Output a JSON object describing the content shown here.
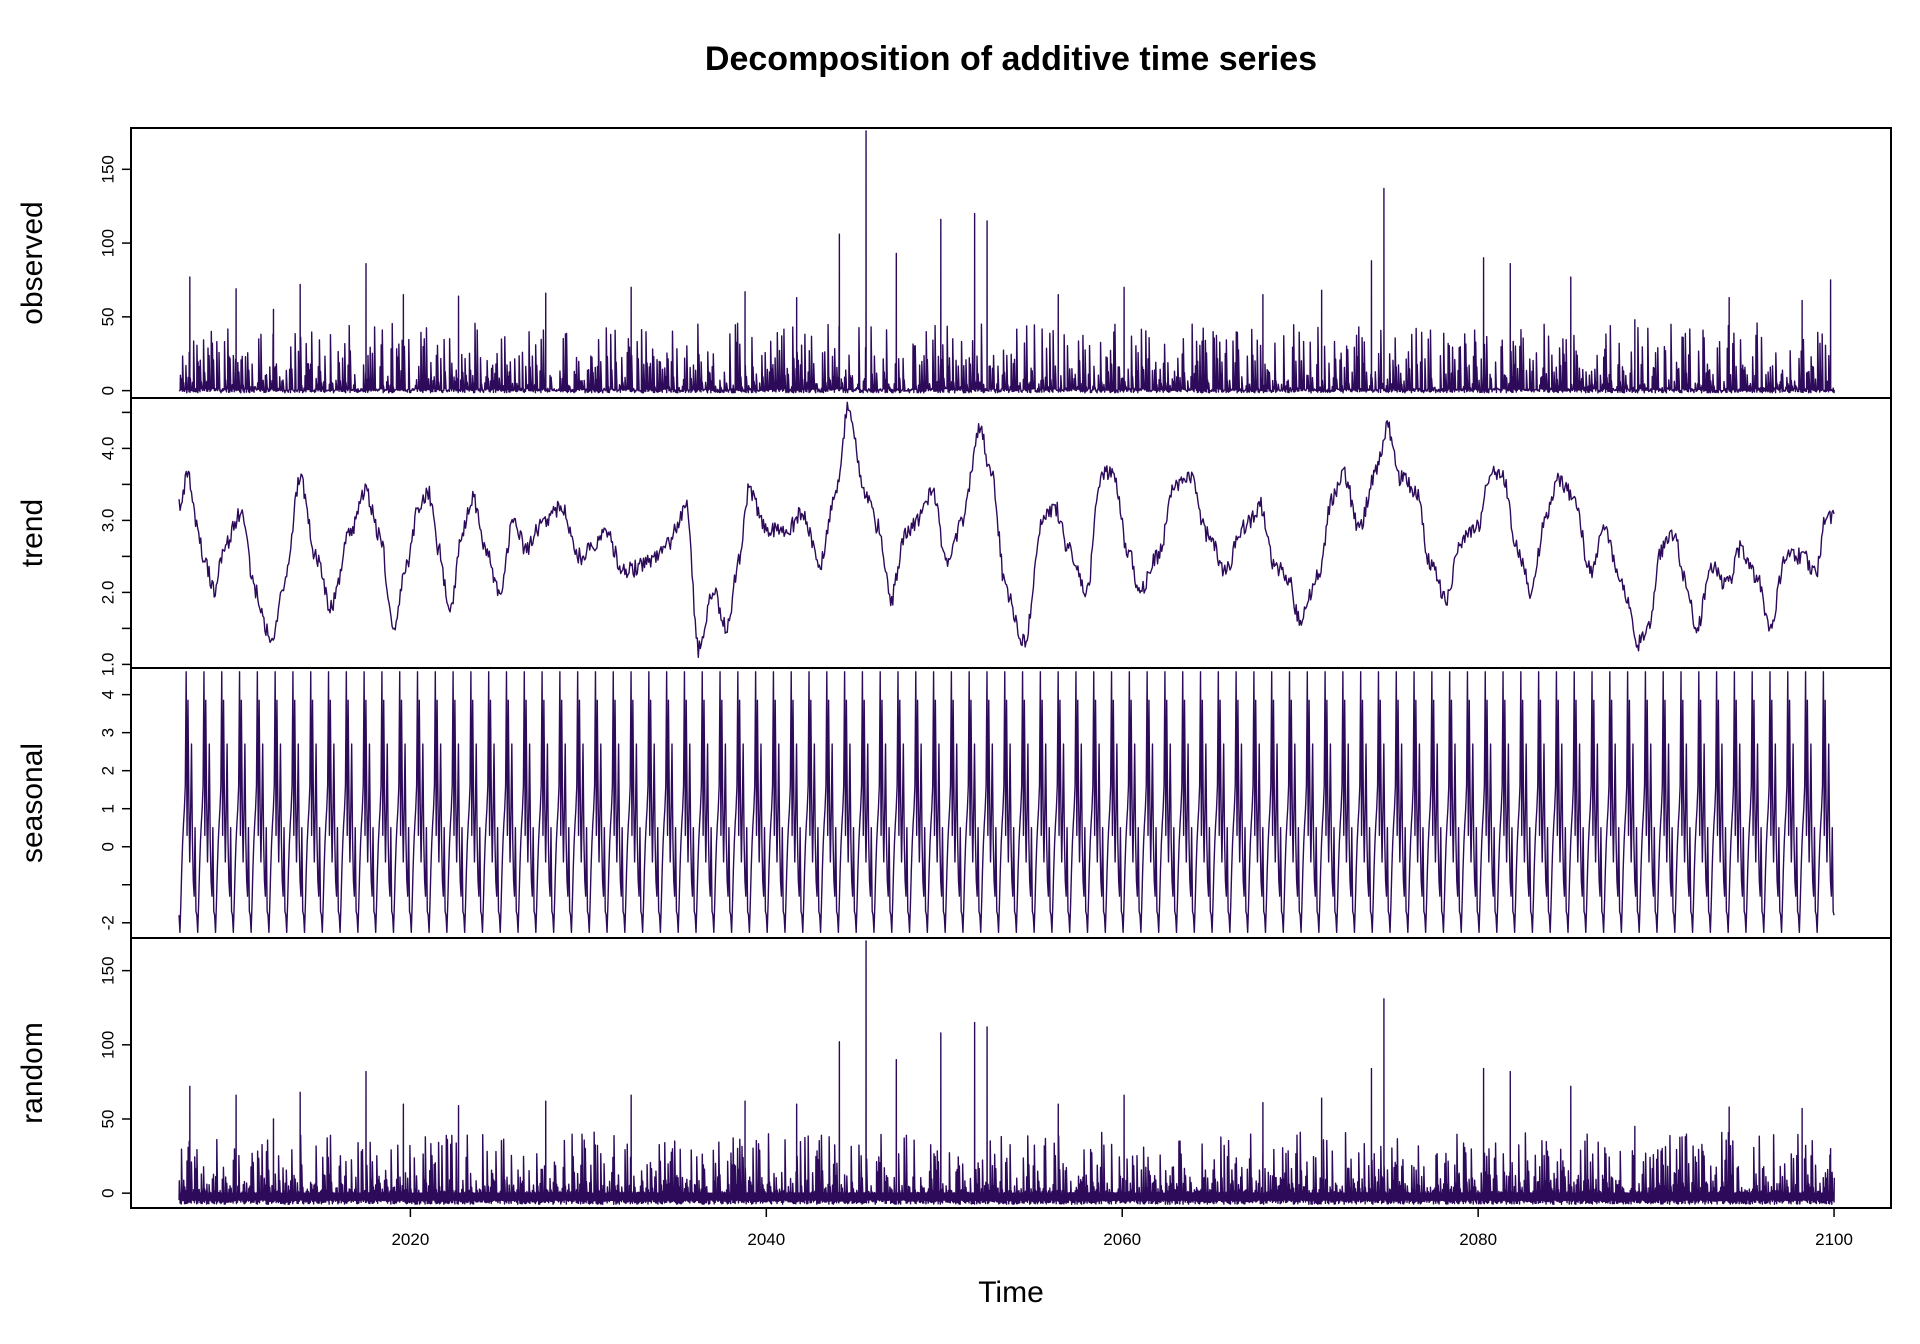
{
  "chart_data": {
    "type": "line",
    "title": "Decomposition of additive time series",
    "xlabel": "Time",
    "xlim": [
      2004.3,
      2103.2
    ],
    "x_ticks": [
      2020,
      2040,
      2060,
      2080,
      2100
    ],
    "data_start": 2007,
    "data_end": 2100,
    "line_color": "#2d0b5a",
    "panels": [
      {
        "name": "observed",
        "ylabel": "observed",
        "ylim": [
          -5,
          178
        ],
        "y_ticks": [
          0,
          50,
          100,
          150
        ],
        "minor_ticks": [],
        "baseline": 0,
        "spikes": [
          {
            "x": 2007.6,
            "y": 77
          },
          {
            "x": 2010.2,
            "y": 69
          },
          {
            "x": 2012.3,
            "y": 55
          },
          {
            "x": 2013.8,
            "y": 72
          },
          {
            "x": 2017.5,
            "y": 86
          },
          {
            "x": 2019.6,
            "y": 65
          },
          {
            "x": 2022.7,
            "y": 64
          },
          {
            "x": 2027.6,
            "y": 66
          },
          {
            "x": 2032.4,
            "y": 70
          },
          {
            "x": 2038.8,
            "y": 67
          },
          {
            "x": 2041.7,
            "y": 63
          },
          {
            "x": 2044.1,
            "y": 106
          },
          {
            "x": 2045.6,
            "y": 176
          },
          {
            "x": 2047.3,
            "y": 93
          },
          {
            "x": 2049.8,
            "y": 116
          },
          {
            "x": 2051.7,
            "y": 120
          },
          {
            "x": 2052.4,
            "y": 115
          },
          {
            "x": 2056.4,
            "y": 65
          },
          {
            "x": 2060.1,
            "y": 70
          },
          {
            "x": 2067.9,
            "y": 65
          },
          {
            "x": 2071.2,
            "y": 68
          },
          {
            "x": 2074.0,
            "y": 88
          },
          {
            "x": 2074.7,
            "y": 137
          },
          {
            "x": 2080.3,
            "y": 90
          },
          {
            "x": 2081.8,
            "y": 86
          },
          {
            "x": 2085.2,
            "y": 77
          },
          {
            "x": 2088.8,
            "y": 48
          },
          {
            "x": 2094.1,
            "y": 63
          },
          {
            "x": 2098.2,
            "y": 61
          },
          {
            "x": 2099.8,
            "y": 75
          }
        ],
        "noise_mean": 22,
        "noise_low": 0,
        "noise_min_scale": 0.8
      },
      {
        "name": "trend",
        "ylabel": "trend",
        "ylim": [
          0.95,
          4.7
        ],
        "y_ticks": [
          1.0,
          2.0,
          3.0,
          4.0
        ],
        "minor_ticks": [
          1.5,
          2.5,
          3.5,
          4.5
        ],
        "anchors": [
          [
            2007.0,
            3.2
          ],
          [
            2007.5,
            3.6
          ],
          [
            2008.0,
            2.9
          ],
          [
            2008.5,
            2.4
          ],
          [
            2009.0,
            2.0
          ],
          [
            2009.5,
            2.6
          ],
          [
            2010.5,
            3.1
          ],
          [
            2011.3,
            2.0
          ],
          [
            2012.2,
            1.3
          ],
          [
            2013.0,
            2.2
          ],
          [
            2013.8,
            3.6
          ],
          [
            2014.7,
            2.5
          ],
          [
            2015.5,
            1.8
          ],
          [
            2016.7,
            2.9
          ],
          [
            2017.5,
            3.4
          ],
          [
            2018.3,
            2.8
          ],
          [
            2019.0,
            1.5
          ],
          [
            2019.8,
            2.4
          ],
          [
            2020.5,
            3.2
          ],
          [
            2021.0,
            3.4
          ],
          [
            2021.6,
            2.6
          ],
          [
            2022.2,
            1.7
          ],
          [
            2023.0,
            2.9
          ],
          [
            2023.5,
            3.3
          ],
          [
            2024.2,
            2.6
          ],
          [
            2025.0,
            2.0
          ],
          [
            2025.8,
            3.0
          ],
          [
            2026.5,
            2.6
          ],
          [
            2027.5,
            3.0
          ],
          [
            2028.5,
            3.2
          ],
          [
            2029.5,
            2.5
          ],
          [
            2031.0,
            2.8
          ],
          [
            2032.0,
            2.3
          ],
          [
            2033.5,
            2.4
          ],
          [
            2034.5,
            2.7
          ],
          [
            2035.5,
            3.2
          ],
          [
            2036.2,
            1.2
          ],
          [
            2037.0,
            2.0
          ],
          [
            2037.8,
            1.5
          ],
          [
            2038.5,
            2.5
          ],
          [
            2039.0,
            3.4
          ],
          [
            2040.0,
            2.9
          ],
          [
            2041.0,
            2.8
          ],
          [
            2042.0,
            3.1
          ],
          [
            2043.0,
            2.4
          ],
          [
            2044.0,
            3.5
          ],
          [
            2044.6,
            4.6
          ],
          [
            2045.5,
            3.4
          ],
          [
            2046.3,
            2.9
          ],
          [
            2047.0,
            1.9
          ],
          [
            2047.8,
            2.8
          ],
          [
            2048.5,
            3.0
          ],
          [
            2049.3,
            3.4
          ],
          [
            2050.2,
            2.4
          ],
          [
            2051.0,
            3.0
          ],
          [
            2052.0,
            4.3
          ],
          [
            2052.6,
            3.7
          ],
          [
            2053.5,
            2.0
          ],
          [
            2054.5,
            1.3
          ],
          [
            2055.5,
            3.0
          ],
          [
            2056.2,
            3.2
          ],
          [
            2057.0,
            2.6
          ],
          [
            2058.0,
            2.0
          ],
          [
            2058.8,
            3.6
          ],
          [
            2059.5,
            3.7
          ],
          [
            2060.3,
            2.6
          ],
          [
            2061.0,
            2.0
          ],
          [
            2062.0,
            2.5
          ],
          [
            2063.0,
            3.5
          ],
          [
            2063.8,
            3.6
          ],
          [
            2064.8,
            2.8
          ],
          [
            2065.8,
            2.3
          ],
          [
            2066.8,
            2.9
          ],
          [
            2067.8,
            3.2
          ],
          [
            2068.5,
            2.4
          ],
          [
            2069.3,
            2.2
          ],
          [
            2070.0,
            1.6
          ],
          [
            2071.0,
            2.2
          ],
          [
            2071.8,
            3.3
          ],
          [
            2072.4,
            3.7
          ],
          [
            2073.3,
            2.9
          ],
          [
            2074.3,
            3.7
          ],
          [
            2074.9,
            4.3
          ],
          [
            2075.6,
            3.6
          ],
          [
            2076.5,
            3.4
          ],
          [
            2077.3,
            2.4
          ],
          [
            2078.2,
            1.9
          ],
          [
            2079.0,
            2.7
          ],
          [
            2080.0,
            2.9
          ],
          [
            2080.6,
            3.6
          ],
          [
            2081.3,
            3.7
          ],
          [
            2082.2,
            2.6
          ],
          [
            2083.0,
            2.0
          ],
          [
            2083.8,
            3.1
          ],
          [
            2084.5,
            3.6
          ],
          [
            2085.4,
            3.3
          ],
          [
            2086.3,
            2.3
          ],
          [
            2087.1,
            2.9
          ],
          [
            2088.0,
            2.2
          ],
          [
            2089.0,
            1.3
          ],
          [
            2089.6,
            1.6
          ],
          [
            2090.3,
            2.6
          ],
          [
            2091.0,
            2.8
          ],
          [
            2091.6,
            2.2
          ],
          [
            2092.3,
            1.5
          ],
          [
            2093.1,
            2.4
          ],
          [
            2094.0,
            2.1
          ],
          [
            2094.7,
            2.6
          ],
          [
            2095.7,
            2.2
          ],
          [
            2096.4,
            1.5
          ],
          [
            2097.3,
            2.5
          ],
          [
            2098.2,
            2.5
          ],
          [
            2099.0,
            2.3
          ],
          [
            2099.5,
            3.0
          ],
          [
            2100.0,
            3.1
          ]
        ],
        "noise": 0.12
      },
      {
        "name": "seasonal",
        "ylabel": "seasonal",
        "ylim": [
          -2.4,
          4.7
        ],
        "y_ticks": [
          -2,
          0,
          1,
          2,
          3,
          4
        ],
        "minor_ticks": [
          -1
        ],
        "pattern": [
          -1.8,
          -2.25,
          -1.5,
          -0.6,
          0.1,
          0.6,
          1.0,
          1.6,
          4.6,
          0.3,
          3.85,
          1.2,
          -0.4,
          0.9,
          2.7,
          0.2,
          -0.9,
          -1.3,
          0.5,
          -1.7
        ]
      },
      {
        "name": "random",
        "ylabel": "random",
        "ylim": [
          -10,
          172
        ],
        "y_ticks": [
          0,
          50,
          100,
          150
        ],
        "minor_ticks": [],
        "baseline": 0,
        "spikes": [
          {
            "x": 2007.6,
            "y": 72
          },
          {
            "x": 2010.2,
            "y": 66
          },
          {
            "x": 2012.3,
            "y": 50
          },
          {
            "x": 2013.8,
            "y": 68
          },
          {
            "x": 2017.5,
            "y": 82
          },
          {
            "x": 2019.6,
            "y": 60
          },
          {
            "x": 2022.7,
            "y": 59
          },
          {
            "x": 2027.6,
            "y": 62
          },
          {
            "x": 2032.4,
            "y": 66
          },
          {
            "x": 2038.8,
            "y": 62
          },
          {
            "x": 2041.7,
            "y": 60
          },
          {
            "x": 2044.1,
            "y": 102
          },
          {
            "x": 2045.6,
            "y": 170
          },
          {
            "x": 2047.3,
            "y": 90
          },
          {
            "x": 2049.8,
            "y": 108
          },
          {
            "x": 2051.7,
            "y": 115
          },
          {
            "x": 2052.4,
            "y": 112
          },
          {
            "x": 2056.4,
            "y": 60
          },
          {
            "x": 2060.1,
            "y": 66
          },
          {
            "x": 2067.9,
            "y": 61
          },
          {
            "x": 2071.2,
            "y": 64
          },
          {
            "x": 2074.0,
            "y": 84
          },
          {
            "x": 2074.7,
            "y": 131
          },
          {
            "x": 2080.3,
            "y": 84
          },
          {
            "x": 2081.8,
            "y": 82
          },
          {
            "x": 2085.2,
            "y": 72
          },
          {
            "x": 2088.8,
            "y": 45
          },
          {
            "x": 2094.1,
            "y": 58
          },
          {
            "x": 2098.2,
            "y": 57
          },
          {
            "x": 2099.8,
            "y": 30
          }
        ],
        "noise_mean": 20,
        "noise_low": -6,
        "noise_min_scale": 0.8
      }
    ]
  }
}
